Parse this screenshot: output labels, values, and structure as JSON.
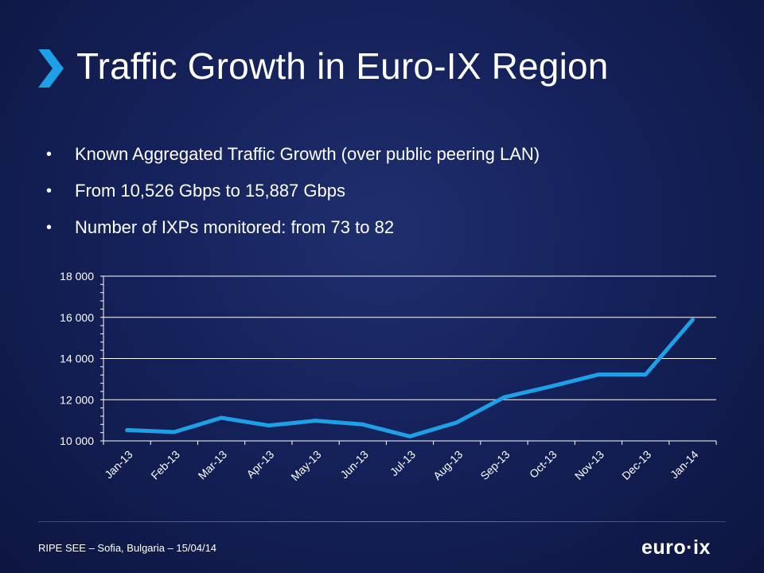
{
  "slide": {
    "title": "Traffic Growth in Euro-IX Region",
    "bullets": [
      "Known Aggregated Traffic Growth (over public peering LAN)",
      "From 10,526 Gbps to 15,887 Gbps",
      "Number of IXPs monitored: from 73 to 82"
    ],
    "footer": "RIPE SEE – Sofia, Bulgaria – 15/04/14",
    "logo": "euro·ix",
    "accent_color": "#1ea0e6",
    "icon": "chevron-right-icon"
  },
  "chart_data": {
    "type": "line",
    "categories": [
      "Jan-13",
      "Feb-13",
      "Mar-13",
      "Apr-13",
      "May-13",
      "Jun-13",
      "Jul-13",
      "Aug-13",
      "Sep-13",
      "Oct-13",
      "Nov-13",
      "Dec-13",
      "Jan-14"
    ],
    "series": [
      {
        "values": [
          10526,
          10430,
          11120,
          10750,
          10980,
          10800,
          10220,
          10900,
          12120,
          12650,
          13220,
          13220,
          15887
        ]
      }
    ],
    "ylim": [
      10000,
      18000
    ],
    "yticks": [
      10000,
      12000,
      14000,
      16000,
      18000
    ],
    "ytick_labels": [
      "10 000",
      "12 000",
      "14 000",
      "16 000",
      "18 000"
    ],
    "title": "",
    "xlabel": "",
    "ylabel": "",
    "grid": true,
    "line_color": "#1ea0e6"
  }
}
